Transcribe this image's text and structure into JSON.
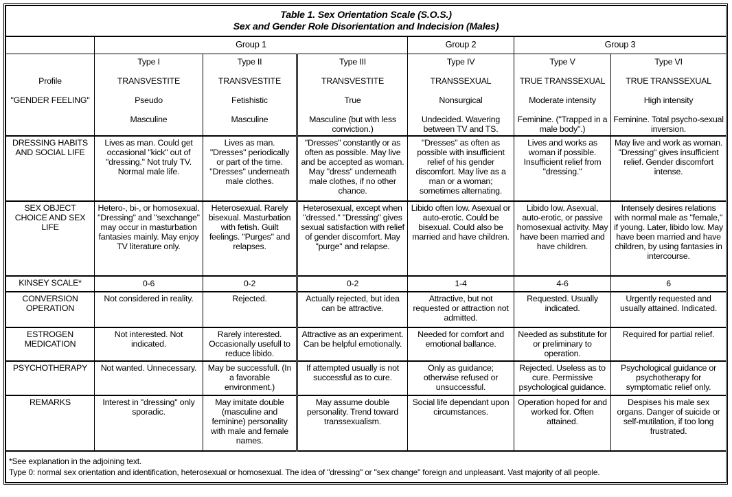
{
  "title": {
    "line1": "Table 1. Sex Orientation Scale (S.O.S.)",
    "line2": "Sex and Gender Role Disorientation and Indecision (Males)"
  },
  "groups": [
    {
      "label": "Group 1",
      "span": 3
    },
    {
      "label": "Group 2",
      "span": 1
    },
    {
      "label": "Group 3",
      "span": 2
    }
  ],
  "profile": {
    "labels": [
      "Profile",
      "\"GENDER FEELING\""
    ],
    "types": [
      {
        "type": "Type I",
        "category": "TRANSVESTITE",
        "qualifier": "Pseudo",
        "feeling": "Masculine"
      },
      {
        "type": "Type II",
        "category": "TRANSVESTITE",
        "qualifier": "Fetishistic",
        "feeling": "Masculine"
      },
      {
        "type": "Type III",
        "category": "TRANSVESTITE",
        "qualifier": "True",
        "feeling": "Masculine (but with less conviction.)"
      },
      {
        "type": "Type IV",
        "category": "TRANSSEXUAL",
        "qualifier": "Nonsurgical",
        "feeling": "Undecided. Wavering between TV and TS."
      },
      {
        "type": "Type V",
        "category": "TRUE TRANSSEXUAL",
        "qualifier": "Moderate intensity",
        "feeling": "Feminine. (\"Trapped in a male body\".)"
      },
      {
        "type": "Type VI",
        "category": "TRUE TRANSSEXUAL",
        "qualifier": "High intensity",
        "feeling": "Feminine. Total psycho-sexual inversion."
      }
    ]
  },
  "rows": [
    {
      "label": "DRESSING HABITS AND SOCIAL LIFE",
      "cells": [
        "Lives as man. Could get occasional \"kick\" out of \"dressing.\" Not truly TV. Normal male life.",
        "Lives as man. \"Dresses\" periodically or part of the time. \"Dresses\" underneath male clothes.",
        "\"Dresses\" constantly or as often as possible. May live and be accepted as woman. May \"dress\" underneath male clothes, if no other chance.",
        "\"Dresses\" as often as possible with insufficient relief of his gender discomfort. May live as a man or a woman; sometimes alternating.",
        "Lives and works as woman if possible. Insufficient relief from \"dressing.\"",
        "May live and work as woman. \"Dressing\" gives insufficient relief. Gender discomfort intense."
      ]
    },
    {
      "label": "SEX OBJECT CHOICE AND SEX LIFE",
      "cells": [
        "Hetero-, bi-, or homosexual. \"Dressing\" and \"sexchange\" may occur in masturbation fantasies mainly. May enjoy TV literature only.",
        "Heterosexual. Rarely bisexual. Masturbation with fetish. Guilt feelings. \"Purges\" and relapses.",
        "Heterosexual, except when \"dressed.\" \"Dressing\" gives sexual satisfaction with relief of gender discomfort. May \"purge\" and relapse.",
        "Libido often low. Asexual or auto-erotic. Could be bisexual. Could also be married and have children.",
        "Libido low. Asexual, auto-erotic, or passive homosexual activity. May have been married and have children.",
        "Intensely desires relations with normal male as \"female,\" if young. Later, libido low. May have been married and have children, by using fantasies in intercourse."
      ]
    },
    {
      "label": "KINSEY SCALE*",
      "cells": [
        "0-6",
        "0-2",
        "0-2",
        "1-4",
        "4-6",
        "6"
      ]
    },
    {
      "label": "CONVERSION OPERATION",
      "cells": [
        "Not considered in reality.",
        "Rejected.",
        "Actually rejected, but idea can be attractive.",
        "Attractive, but not requested or attraction not admitted.",
        "Requested. Usually indicated.",
        "Urgently requested and usually attained. Indicated."
      ]
    },
    {
      "label": "ESTROGEN MEDICATION",
      "cells": [
        "Not interested. Not indicated.",
        "Rarely interested. Occasionally usefull to reduce libido.",
        "Attractive as an experiment. Can be helpful emotionally.",
        "Needed for comfort and emotional ballance.",
        "Needed as substitute for or preliminary to operation.",
        "Required for partial relief."
      ]
    },
    {
      "label": "PSYCHOTHERAPY",
      "cells": [
        "Not wanted. Unnecessary.",
        "May be successfull. (In a favorable environment.)",
        "If attempted usually is not successful as to cure.",
        "Only as guidance; otherwise refused or unsuccessful.",
        "Rejected. Useless as to cure. Permissive psychological guidance.",
        "Psychological guidance or psychotherapy for symptomatic relief only."
      ]
    },
    {
      "label": "REMARKS",
      "cells": [
        "Interest in \"dressing\" only sporadic.",
        "May imitate double (masculine and feminine) personality with male and female names.",
        "May assume double personality. Trend toward transsexualism.",
        "Social life dependant upon circumstances.",
        "Operation hoped for and worked for. Often attained.",
        "Despises his male sex organs. Danger of suicide or self-mutilation, if too long frustrated."
      ]
    }
  ],
  "footnotes": [
    "*See explanation in the adjoining text.",
    "Type 0: normal sex orientation and identification, heterosexual or homosexual. The idea of \"dressing\" or \"sex change\" foreign and unpleasant. Vast majority of all people."
  ]
}
